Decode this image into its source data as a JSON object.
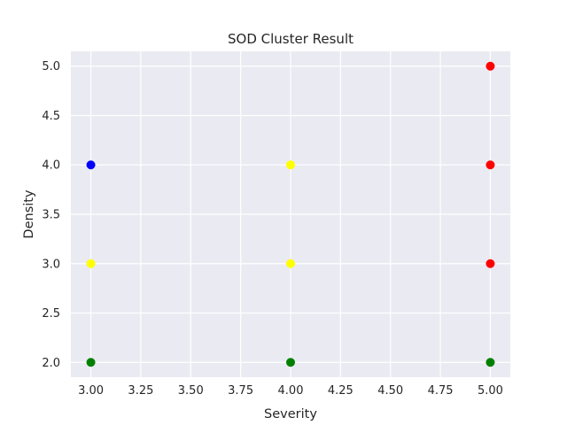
{
  "chart_data": {
    "type": "scatter",
    "title": "SOD Cluster Result",
    "xlabel": "Severity",
    "ylabel": "Density",
    "xlim": [
      2.9,
      5.1
    ],
    "ylim": [
      1.85,
      5.15
    ],
    "xticks": [
      3.0,
      3.25,
      3.5,
      3.75,
      4.0,
      4.25,
      4.5,
      4.75,
      5.0
    ],
    "xtick_labels": [
      "3.00",
      "3.25",
      "3.50",
      "3.75",
      "4.00",
      "4.25",
      "4.50",
      "4.75",
      "5.00"
    ],
    "yticks": [
      2.0,
      2.5,
      3.0,
      3.5,
      4.0,
      4.5,
      5.0
    ],
    "ytick_labels": [
      "2.0",
      "2.5",
      "3.0",
      "3.5",
      "4.0",
      "4.5",
      "5.0"
    ],
    "grid": true,
    "legend": "none",
    "background_color": "#eaeaf2",
    "grid_color": "#ffffff",
    "series": [
      {
        "color": "#0000ff",
        "points": [
          [
            3,
            4
          ]
        ]
      },
      {
        "color": "#ffff00",
        "points": [
          [
            3,
            3
          ],
          [
            4,
            4
          ],
          [
            4,
            3
          ]
        ]
      },
      {
        "color": "#008000",
        "points": [
          [
            3,
            2
          ],
          [
            4,
            2
          ],
          [
            5,
            2
          ]
        ]
      },
      {
        "color": "#ff0000",
        "points": [
          [
            5,
            5
          ],
          [
            5,
            4
          ],
          [
            5,
            3
          ]
        ]
      }
    ]
  }
}
